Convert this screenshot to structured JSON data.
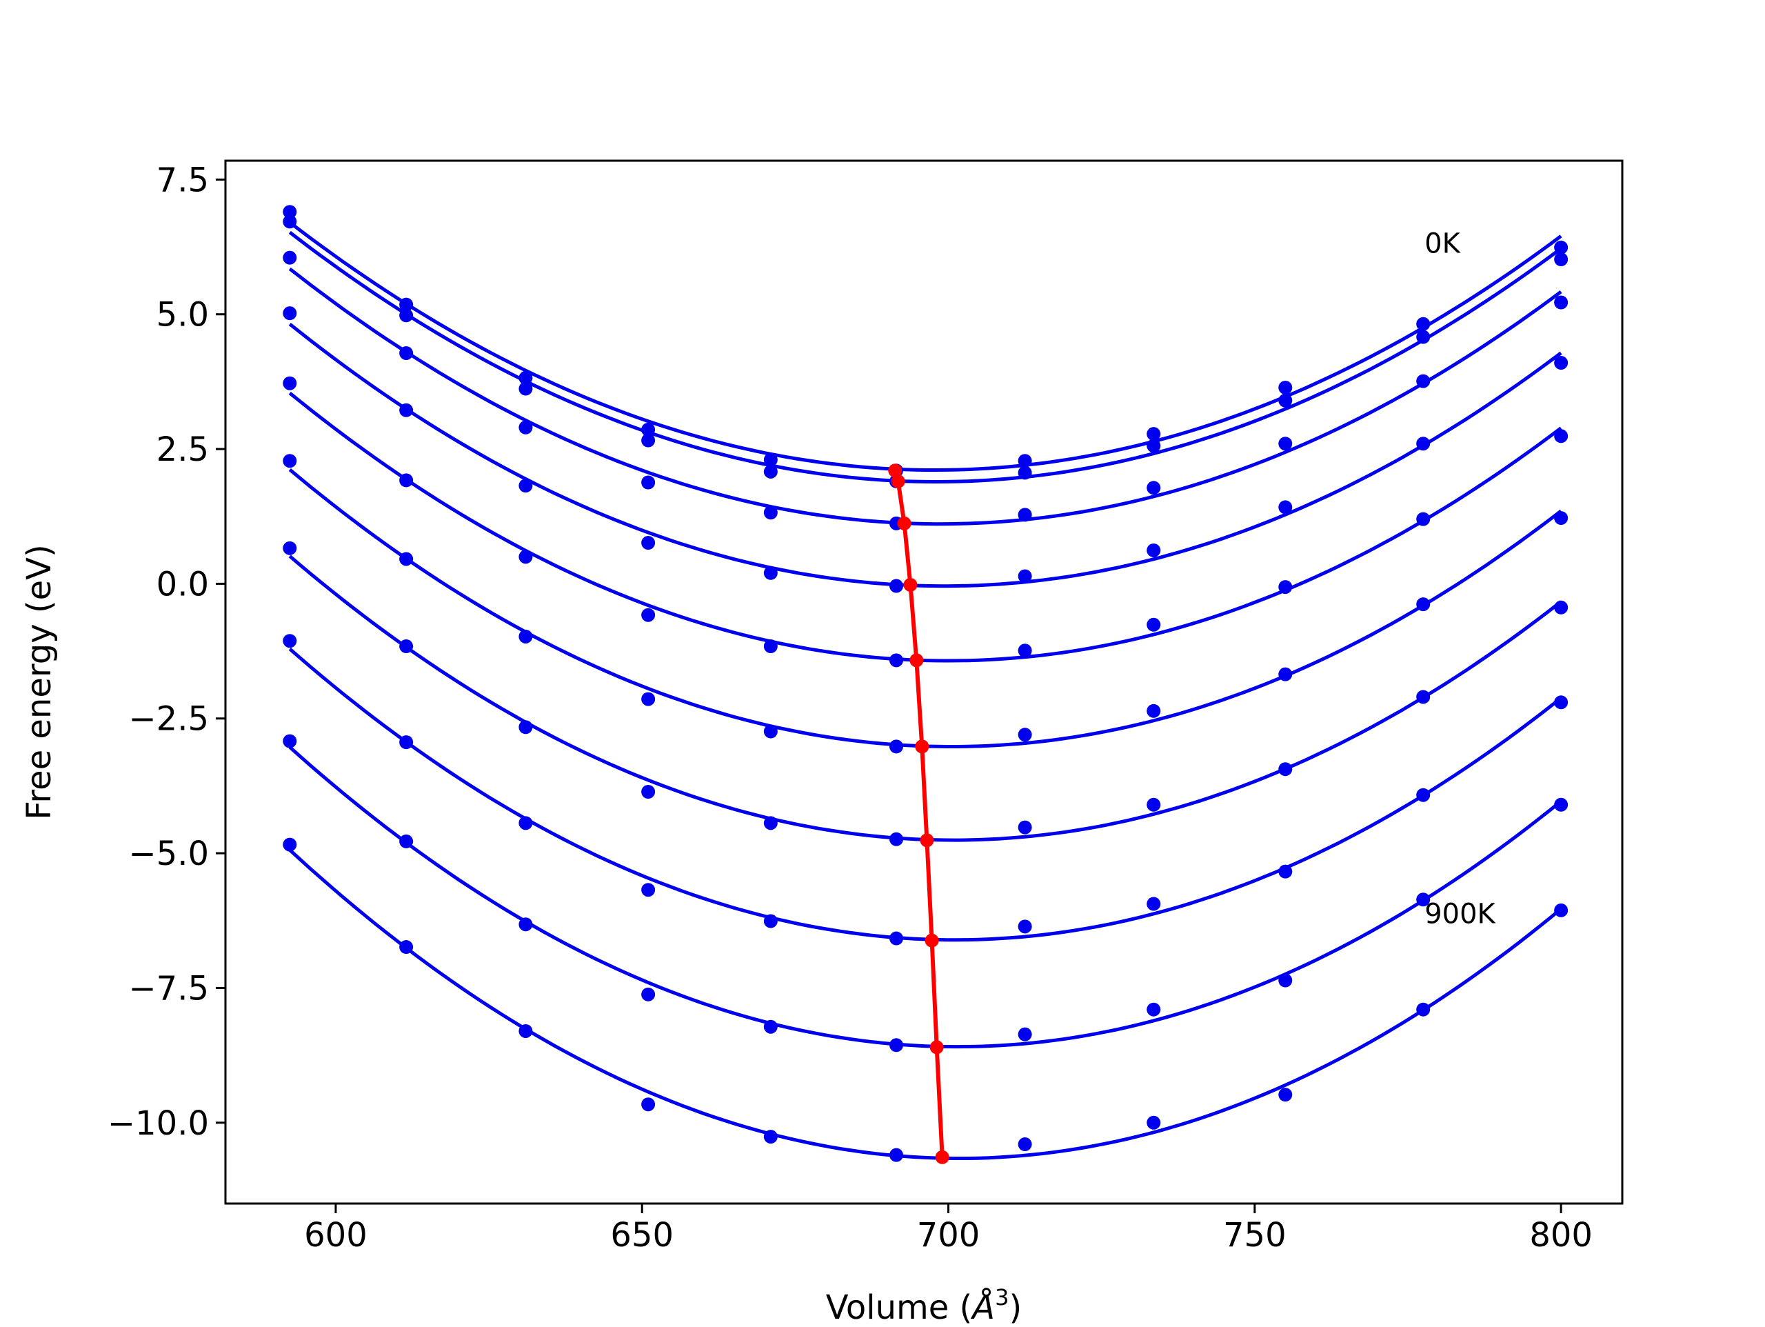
{
  "chart_data": {
    "type": "line",
    "title": "",
    "xlabel": "Volume",
    "xlabel_unit": "Å",
    "xlabel_unit_exp": "3",
    "ylabel": "Free energy (eV)",
    "xlim": [
      582,
      810
    ],
    "ylim": [
      -11.5,
      7.85
    ],
    "xticks": [
      600,
      650,
      700,
      750,
      800
    ],
    "xtick_labels": [
      "600",
      "650",
      "700",
      "750",
      "800"
    ],
    "yticks": [
      7.5,
      5.0,
      2.5,
      0.0,
      -2.5,
      -5.0,
      -7.5,
      -10.0
    ],
    "ytick_labels": [
      "7.5",
      "5.0",
      "2.5",
      "0.0",
      "−2.5",
      "−5.0",
      "−7.5",
      "−10.0"
    ],
    "grid": false,
    "legend": "none",
    "colors": {
      "fit_curves": "#0000ee",
      "data_points": "#0000ee",
      "equilibrium_line": "#ff0000"
    },
    "x": [
      592.5,
      611.5,
      631.0,
      651.0,
      671.0,
      691.5,
      712.5,
      733.5,
      755.0,
      777.5,
      800.0
    ],
    "series": [
      {
        "values": [
          6.9,
          5.18,
          3.82,
          2.86,
          2.3,
          2.1,
          2.28,
          2.78,
          3.64,
          4.82,
          6.24
        ]
      },
      {
        "values": [
          6.72,
          4.98,
          3.62,
          2.66,
          2.08,
          1.9,
          2.06,
          2.56,
          3.4,
          4.58,
          6.02
        ]
      },
      {
        "values": [
          6.05,
          4.28,
          2.9,
          1.88,
          1.32,
          1.12,
          1.28,
          1.78,
          2.6,
          3.76,
          5.22
        ]
      },
      {
        "values": [
          5.02,
          3.22,
          1.82,
          0.76,
          0.2,
          -0.04,
          0.14,
          0.62,
          1.42,
          2.6,
          4.1
        ]
      },
      {
        "values": [
          3.72,
          1.92,
          0.5,
          -0.58,
          -1.16,
          -1.42,
          -1.24,
          -0.76,
          -0.06,
          1.2,
          2.74
        ]
      },
      {
        "values": [
          2.28,
          0.46,
          -0.98,
          -2.14,
          -2.74,
          -3.02,
          -2.8,
          -2.36,
          -1.68,
          -0.38,
          1.22
        ]
      },
      {
        "values": [
          0.66,
          -1.16,
          -2.66,
          -3.86,
          -4.44,
          -4.74,
          -4.52,
          -4.1,
          -3.44,
          -2.1,
          -0.44
        ]
      },
      {
        "values": [
          -1.06,
          -2.94,
          -4.44,
          -5.68,
          -6.26,
          -6.58,
          -6.36,
          -5.94,
          -5.34,
          -3.92,
          -2.2
        ]
      },
      {
        "values": [
          -2.92,
          -4.78,
          -6.32,
          -7.62,
          -8.22,
          -8.56,
          -8.36,
          -7.9,
          -7.36,
          -5.86,
          -4.1
        ]
      },
      {
        "values": [
          -4.84,
          -6.74,
          -8.3,
          -9.66,
          -10.26,
          -10.6,
          -10.4,
          -10.0,
          -9.48,
          -7.9,
          -6.06
        ]
      }
    ],
    "equilibrium": {
      "volumes": [
        691.3,
        691.8,
        692.8,
        693.8,
        694.8,
        695.7,
        696.5,
        697.3,
        698.1,
        699.0
      ],
      "energies": [
        2.1,
        1.9,
        1.12,
        -0.02,
        -1.42,
        -3.02,
        -4.76,
        -6.62,
        -8.6,
        -10.64
      ]
    },
    "annotations": [
      {
        "text": "0K",
        "x": 777.5,
        "y": 6.32
      },
      {
        "text": "900K",
        "x": 777.5,
        "y": -6.12
      }
    ]
  }
}
